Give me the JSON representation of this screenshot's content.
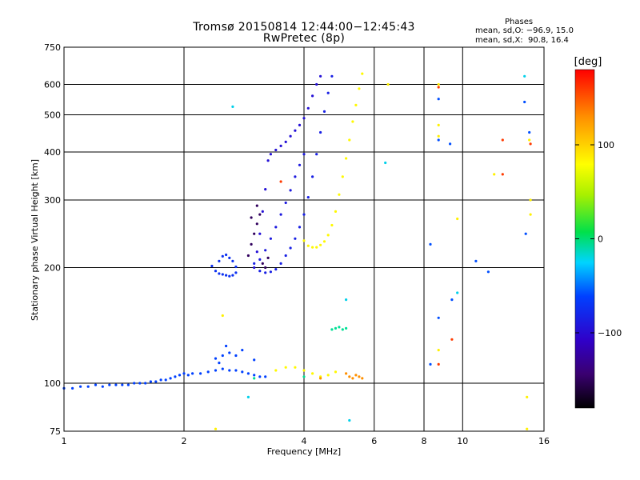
{
  "chart_data": {
    "type": "scatter",
    "title": "Tromsø 20150814 12:44:00−12:45:43",
    "subtitle": "RwPretec (8p)",
    "xlabel": "Frequency [MHz]",
    "ylabel": "Stationary phase Virtual Height [km]",
    "x_scale": "log2",
    "y_scale": "log",
    "xlim": [
      1,
      16
    ],
    "ylim": [
      75,
      750
    ],
    "x_ticks": [
      1,
      2,
      4,
      6,
      8,
      10,
      16
    ],
    "x_tick_labels": [
      "1",
      "2",
      "4",
      "6",
      "8",
      "10",
      "16"
    ],
    "y_ticks": [
      75,
      100,
      200,
      300,
      400,
      500,
      600,
      750
    ],
    "y_tick_labels": [
      "75",
      "100",
      "200",
      "300",
      "400",
      "500",
      "600",
      "750"
    ],
    "x_gridlines": [
      2,
      4,
      6,
      8,
      10
    ],
    "y_gridlines": [
      100,
      200,
      300,
      400,
      500,
      600
    ],
    "grid": true,
    "legend": {
      "title": "Phases",
      "lines": [
        "mean, sd,O: −96.9, 15.0",
        "mean, sd,X:  90.8, 16.4"
      ],
      "position": "top-right"
    },
    "colorbar": {
      "label": "[deg]",
      "range": [
        -180,
        180
      ],
      "ticks": [
        100,
        0,
        -100
      ],
      "tick_labels": [
        "100",
        "0",
        "−100"
      ],
      "colormap": "rainbow (black-purple-blue-cyan-green-yellow-orange-red)"
    },
    "series": [
      {
        "name": "",
        "phase": -100,
        "points": [
          [
            1.0,
            97
          ],
          [
            1.05,
            97
          ],
          [
            1.1,
            98
          ],
          [
            1.15,
            98
          ],
          [
            1.2,
            99
          ],
          [
            1.25,
            98
          ],
          [
            1.3,
            99
          ],
          [
            1.35,
            99
          ],
          [
            1.4,
            99
          ],
          [
            1.45,
            99
          ],
          [
            1.5,
            100
          ],
          [
            1.55,
            100
          ],
          [
            1.6,
            100
          ],
          [
            1.65,
            101
          ],
          [
            1.7,
            101
          ],
          [
            1.75,
            102
          ],
          [
            1.8,
            102
          ],
          [
            1.85,
            103
          ],
          [
            1.9,
            104
          ],
          [
            1.95,
            105
          ],
          [
            2.0,
            106
          ],
          [
            2.05,
            105
          ],
          [
            2.1,
            106
          ],
          [
            2.2,
            106
          ],
          [
            2.3,
            107
          ],
          [
            2.4,
            108
          ],
          [
            2.5,
            109
          ],
          [
            2.6,
            108
          ],
          [
            2.7,
            108
          ],
          [
            2.8,
            107
          ],
          [
            2.9,
            106
          ],
          [
            3.0,
            105
          ],
          [
            3.1,
            104
          ],
          [
            3.2,
            104
          ],
          [
            2.4,
            116
          ],
          [
            2.5,
            118
          ],
          [
            2.6,
            120
          ],
          [
            2.7,
            118
          ],
          [
            2.8,
            122
          ],
          [
            3.0,
            115
          ],
          [
            2.55,
            125
          ],
          [
            2.45,
            113
          ]
        ]
      },
      {
        "name": "",
        "phase": -105,
        "points": [
          [
            2.35,
            202
          ],
          [
            2.4,
            196
          ],
          [
            2.45,
            193
          ],
          [
            2.5,
            192
          ],
          [
            2.55,
            191
          ],
          [
            2.6,
            190
          ],
          [
            2.65,
            191
          ],
          [
            2.7,
            194
          ],
          [
            2.45,
            208
          ],
          [
            2.5,
            214
          ],
          [
            2.55,
            216
          ],
          [
            2.6,
            212
          ],
          [
            2.65,
            208
          ],
          [
            2.7,
            201
          ]
        ]
      },
      {
        "name": "",
        "phase": -115,
        "points": [
          [
            3.0,
            200
          ],
          [
            3.05,
            220
          ],
          [
            3.1,
            245
          ],
          [
            3.15,
            280
          ],
          [
            3.2,
            320
          ],
          [
            3.25,
            380
          ],
          [
            3.3,
            395
          ],
          [
            3.4,
            405
          ],
          [
            3.5,
            415
          ],
          [
            3.6,
            425
          ],
          [
            3.7,
            440
          ],
          [
            3.8,
            455
          ],
          [
            3.9,
            470
          ],
          [
            4.0,
            490
          ],
          [
            4.1,
            520
          ],
          [
            4.2,
            560
          ],
          [
            4.3,
            600
          ],
          [
            4.4,
            630
          ]
        ]
      },
      {
        "name": "",
        "phase": -110,
        "points": [
          [
            3.0,
            205
          ],
          [
            3.1,
            196
          ],
          [
            3.2,
            194
          ],
          [
            3.3,
            195
          ],
          [
            3.4,
            198
          ],
          [
            3.5,
            205
          ],
          [
            3.6,
            215
          ],
          [
            3.7,
            225
          ],
          [
            3.8,
            238
          ],
          [
            3.9,
            255
          ],
          [
            4.0,
            275
          ],
          [
            4.1,
            305
          ],
          [
            4.2,
            345
          ],
          [
            4.3,
            395
          ],
          [
            4.4,
            450
          ],
          [
            4.5,
            510
          ],
          [
            4.6,
            570
          ],
          [
            4.7,
            630
          ]
        ]
      },
      {
        "name": "",
        "phase": -112,
        "points": [
          [
            3.1,
            210
          ],
          [
            3.2,
            222
          ],
          [
            3.3,
            238
          ],
          [
            3.4,
            255
          ],
          [
            3.5,
            275
          ],
          [
            3.6,
            295
          ],
          [
            3.7,
            318
          ],
          [
            3.8,
            345
          ],
          [
            3.9,
            370
          ],
          [
            4.0,
            395
          ]
        ]
      },
      {
        "name": "",
        "phase": -155,
        "points": [
          [
            2.9,
            215
          ],
          [
            2.95,
            230
          ],
          [
            3.0,
            245
          ],
          [
            3.05,
            260
          ],
          [
            3.1,
            275
          ],
          [
            3.15,
            205
          ],
          [
            3.2,
            200
          ],
          [
            3.25,
            212
          ],
          [
            2.95,
            270
          ],
          [
            3.05,
            290
          ]
        ]
      },
      {
        "name": "",
        "phase": 92,
        "points": [
          [
            4.0,
            235
          ],
          [
            4.1,
            228
          ],
          [
            4.2,
            226
          ],
          [
            4.3,
            226
          ],
          [
            4.4,
            229
          ],
          [
            4.5,
            234
          ],
          [
            4.6,
            243
          ],
          [
            4.7,
            258
          ],
          [
            4.8,
            280
          ],
          [
            4.9,
            310
          ],
          [
            5.0,
            345
          ],
          [
            5.1,
            385
          ],
          [
            5.2,
            430
          ],
          [
            5.3,
            480
          ],
          [
            5.4,
            530
          ],
          [
            5.5,
            585
          ],
          [
            5.6,
            640
          ]
        ]
      },
      {
        "name": "",
        "phase": 92,
        "points": [
          [
            3.4,
            108
          ],
          [
            3.6,
            110
          ],
          [
            3.8,
            110
          ],
          [
            4.0,
            108
          ],
          [
            4.2,
            106
          ],
          [
            4.4,
            104
          ],
          [
            4.6,
            105
          ],
          [
            4.8,
            107
          ]
        ]
      },
      {
        "name": "",
        "phase": 130,
        "points": [
          [
            5.2,
            104
          ],
          [
            5.3,
            103
          ],
          [
            5.4,
            105
          ],
          [
            5.5,
            104
          ],
          [
            5.6,
            103
          ],
          [
            4.4,
            103
          ],
          [
            5.1,
            106
          ]
        ]
      },
      {
        "name": "",
        "phase": -15,
        "points": [
          [
            4.7,
            138
          ],
          [
            4.8,
            139
          ],
          [
            4.9,
            140
          ],
          [
            5.0,
            138
          ],
          [
            5.1,
            139
          ],
          [
            3.0,
            103
          ],
          [
            4.0,
            104
          ]
        ]
      },
      {
        "name": "",
        "phase": 95,
        "points": [
          [
            8.7,
            600
          ],
          [
            8.7,
            470
          ],
          [
            8.7,
            440
          ],
          [
            9.7,
            268
          ],
          [
            12.0,
            350
          ],
          [
            14.7,
            430
          ],
          [
            14.8,
            300
          ],
          [
            14.8,
            275
          ],
          [
            8.7,
            122
          ],
          [
            14.5,
            92
          ],
          [
            14.5,
            76
          ],
          [
            2.4,
            76
          ],
          [
            2.5,
            150
          ],
          [
            6.5,
            600
          ]
        ]
      },
      {
        "name": "",
        "phase": -95,
        "points": [
          [
            8.7,
            550
          ],
          [
            8.7,
            430
          ],
          [
            9.3,
            420
          ],
          [
            8.3,
            230
          ],
          [
            10.8,
            208
          ],
          [
            11.6,
            195
          ],
          [
            14.3,
            540
          ],
          [
            14.7,
            450
          ],
          [
            14.4,
            245
          ],
          [
            8.7,
            148
          ],
          [
            8.3,
            112
          ],
          [
            9.4,
            165
          ]
        ]
      },
      {
        "name": "",
        "phase": 160,
        "points": [
          [
            8.7,
            590
          ],
          [
            12.6,
            430
          ],
          [
            12.6,
            350
          ],
          [
            14.8,
            420
          ],
          [
            8.7,
            112
          ],
          [
            9.4,
            130
          ],
          [
            3.5,
            335
          ]
        ]
      },
      {
        "name": "",
        "phase": -40,
        "points": [
          [
            2.65,
            525
          ],
          [
            14.3,
            630
          ],
          [
            5.1,
            165
          ],
          [
            6.4,
            375
          ],
          [
            2.9,
            92
          ],
          [
            5.2,
            80
          ],
          [
            9.7,
            172
          ]
        ]
      }
    ]
  }
}
